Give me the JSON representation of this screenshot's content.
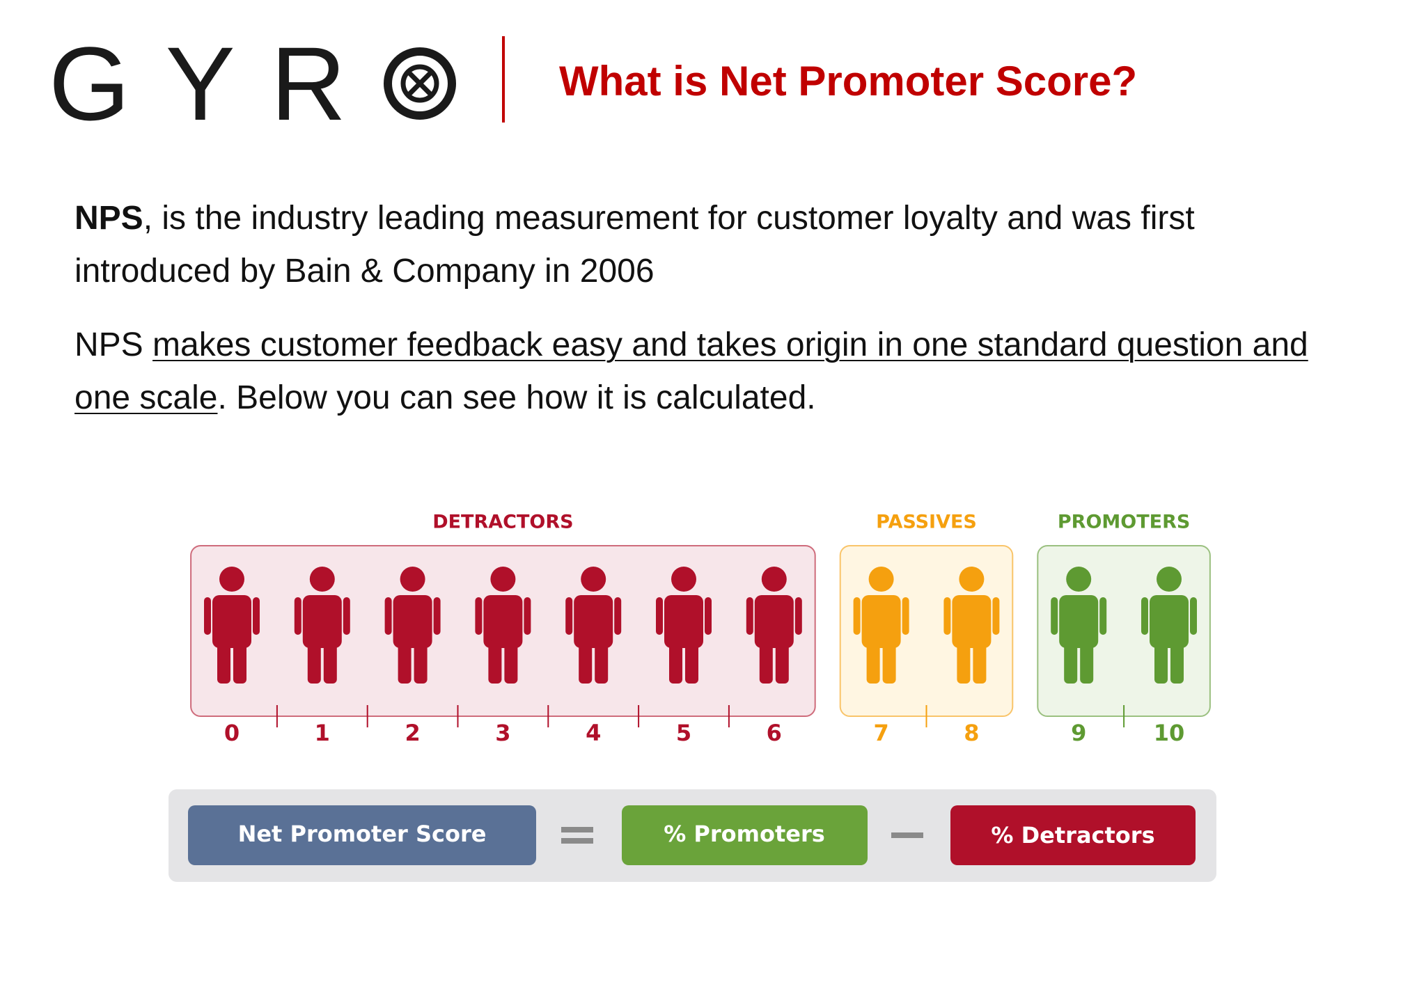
{
  "header": {
    "logo": "G Y R",
    "title": "What is Net Promoter Score?"
  },
  "paragraphs": [
    {
      "parts": [
        {
          "text": "NPS",
          "bold": true
        },
        {
          "text": ", is the industry leading measurement for customer loyalty and was first introduced by Bain & Company in 2006"
        }
      ]
    },
    {
      "parts": [
        {
          "text": "NPS "
        },
        {
          "text": "makes customer feedback easy and takes origin in one standard question and one scale",
          "underline": true
        },
        {
          "text": ". Below you can see how it is calculated."
        }
      ]
    }
  ],
  "diagram": {
    "groups": [
      {
        "label": "DETRACTORS",
        "color": "#b0102a",
        "scores": [
          0,
          1,
          2,
          3,
          4,
          5,
          6
        ]
      },
      {
        "label": "PASSIVES",
        "color": "#f5a00f",
        "scores": [
          7,
          8
        ]
      },
      {
        "label": "PROMOTERS",
        "color": "#5e9a32",
        "scores": [
          9,
          10
        ]
      }
    ],
    "formula": {
      "result": "Net Promoter Score",
      "plus": "% Promoters",
      "minus": "% Detractors"
    }
  }
}
